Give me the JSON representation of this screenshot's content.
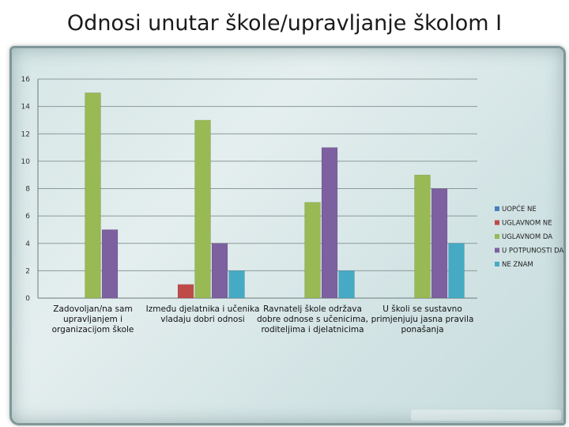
{
  "slide": {
    "title": "Odnosi unutar škole/upravljanje školom I"
  },
  "chart_data": {
    "type": "bar",
    "title": "",
    "xlabel": "",
    "ylabel": "",
    "ylim": [
      0,
      16
    ],
    "yticks": [
      0,
      2,
      4,
      6,
      8,
      10,
      12,
      14,
      16
    ],
    "grid": true,
    "legend_position": "right",
    "categories": [
      [
        "Zadovoljan/na sam",
        "upravljanjem i",
        "organizacijom škole"
      ],
      [
        "Između djelatnika i učenika",
        "vladaju dobri odnosi"
      ],
      [
        "Ravnatelj škole održava",
        "dobre odnose s učenicima,",
        "roditeljima i djelatnicima"
      ],
      [
        "U školi se sustavno",
        "primjenjuju jasna pravila",
        "ponašanja"
      ]
    ],
    "series": [
      {
        "name": "UOPĆE NE",
        "color": "#4a7ebb",
        "values": [
          0,
          0,
          0,
          0
        ]
      },
      {
        "name": "UGLAVNOM NE",
        "color": "#be4b48",
        "values": [
          0,
          1,
          0,
          0
        ]
      },
      {
        "name": "UGLAVNOM DA",
        "color": "#98b954",
        "values": [
          15,
          13,
          7,
          9
        ]
      },
      {
        "name": "U POTPUNOSTI DA",
        "color": "#7d60a0",
        "values": [
          5,
          4,
          11,
          8
        ]
      },
      {
        "name": "NE ZNAM",
        "color": "#46aac5",
        "values": [
          0,
          2,
          2,
          4
        ]
      }
    ]
  }
}
